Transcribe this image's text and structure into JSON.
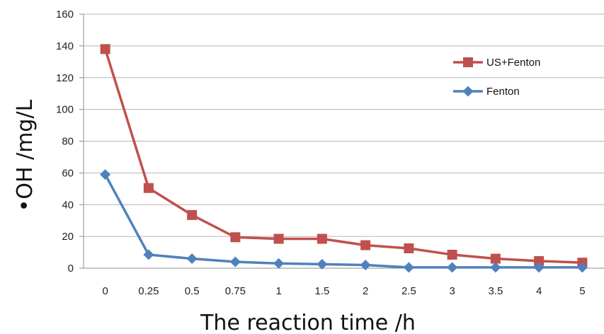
{
  "chart_data": {
    "type": "line",
    "categories": [
      "0",
      "0.25",
      "0.5",
      "0.75",
      "1",
      "1.5",
      "2",
      "2.5",
      "3",
      "3.5",
      "4",
      "5"
    ],
    "series": [
      {
        "name": "US+Fenton",
        "color": "#c0504d",
        "marker": "square",
        "values": [
          138,
          50.5,
          33.5,
          19.5,
          18.5,
          18.5,
          14.5,
          12.5,
          8.5,
          6,
          4.5,
          3.5
        ]
      },
      {
        "name": "Fenton",
        "color": "#4f81bd",
        "marker": "diamond",
        "values": [
          59,
          8.5,
          6,
          4,
          3,
          2.5,
          2,
          0.5,
          0.5,
          0.5,
          0.5,
          0.5
        ]
      }
    ],
    "xlabel": "The reaction time /h",
    "ylabel": "•OH /mg/L",
    "ylim": [
      0,
      160
    ],
    "yticks": [
      0,
      20,
      40,
      60,
      80,
      100,
      120,
      140,
      160
    ],
    "grid": true,
    "legend_position": "top-right"
  }
}
